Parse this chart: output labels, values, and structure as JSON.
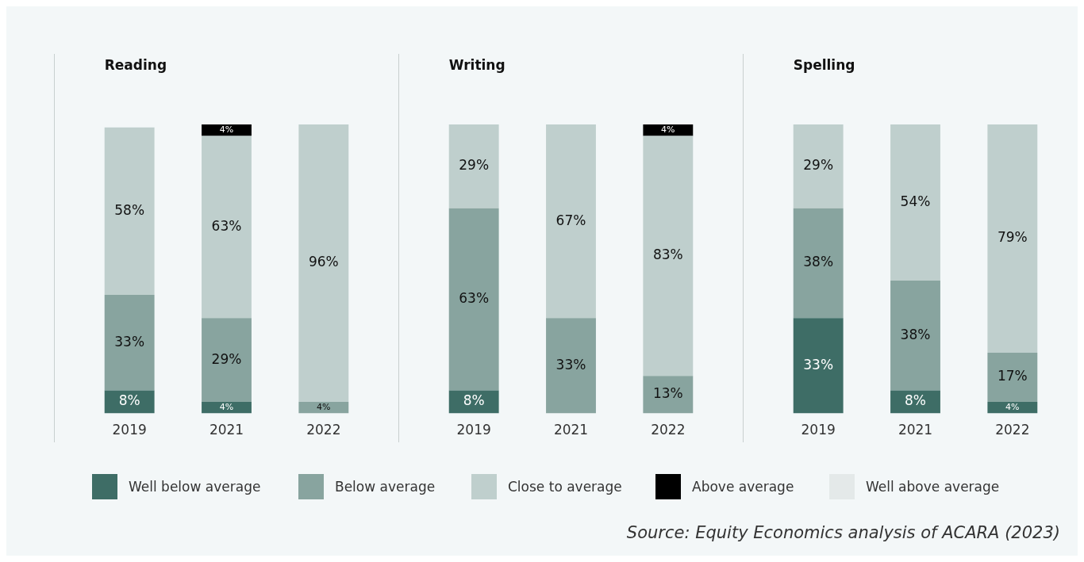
{
  "chart_data": [
    {
      "type": "bar",
      "title": "Reading",
      "categories": [
        "2019",
        "2021",
        "2022"
      ],
      "stacked": true,
      "grid": false,
      "legend": "bottom",
      "tick_labels": "x",
      "annotations": [
        "Source: Equity Economics analysis of ACARA (2023)"
      ],
      "series": [
        {
          "name": "Well below average",
          "color": "#3e6d66",
          "values": [
            8,
            4,
            null
          ],
          "value_labels": [
            "8%",
            "4%",
            null
          ]
        },
        {
          "name": "Below average",
          "color": "#88a49f",
          "values": [
            33,
            29,
            4
          ],
          "value_labels": [
            "33%",
            "29%",
            "4%"
          ]
        },
        {
          "name": "Close to average",
          "color": "#bfcfcd",
          "values": [
            58,
            63,
            96
          ],
          "value_labels": [
            "58%",
            "63%",
            "96%"
          ]
        },
        {
          "name": "Above average",
          "color": "#000000",
          "values": [
            null,
            4,
            null
          ],
          "value_labels": [
            null,
            "4%",
            null
          ]
        },
        {
          "name": "Well above average",
          "color": "#e4e9e9",
          "values": [
            null,
            null,
            null
          ]
        }
      ]
    },
    {
      "type": "bar",
      "title": "Writing",
      "categories": [
        "2019",
        "2021",
        "2022"
      ],
      "stacked": true,
      "grid": false,
      "tick_labels": "x",
      "series": [
        {
          "color": "#3e6d66",
          "values": [
            8,
            null,
            null
          ],
          "value_labels": [
            "8%",
            null,
            null
          ]
        },
        {
          "color": "#88a49f",
          "values": [
            63,
            33,
            13
          ],
          "value_labels": [
            "63%",
            "33%",
            "13%"
          ]
        },
        {
          "color": "#bfcfcd",
          "values": [
            29,
            67,
            83
          ],
          "value_labels": [
            "29%",
            "67%",
            "83%"
          ]
        },
        {
          "color": "#000000",
          "values": [
            null,
            null,
            4
          ],
          "value_labels": [
            null,
            null,
            "4%"
          ]
        }
      ]
    },
    {
      "type": "bar",
      "title": "Spelling",
      "categories": [
        "2019",
        "2021",
        "2022"
      ],
      "stacked": true,
      "grid": false,
      "tick_labels": "x",
      "series": [
        {
          "color": "#3e6d66",
          "values": [
            33,
            8,
            4
          ],
          "value_labels": [
            "33%",
            "8%",
            "4%"
          ]
        },
        {
          "color": "#88a49f",
          "values": [
            38,
            38,
            17
          ],
          "value_labels": [
            "38%",
            "38%",
            "17%"
          ]
        },
        {
          "color": "#bfcfcd",
          "values": [
            29,
            54,
            79
          ],
          "value_labels": [
            "29%",
            "54%",
            "79%"
          ]
        }
      ]
    }
  ]
}
